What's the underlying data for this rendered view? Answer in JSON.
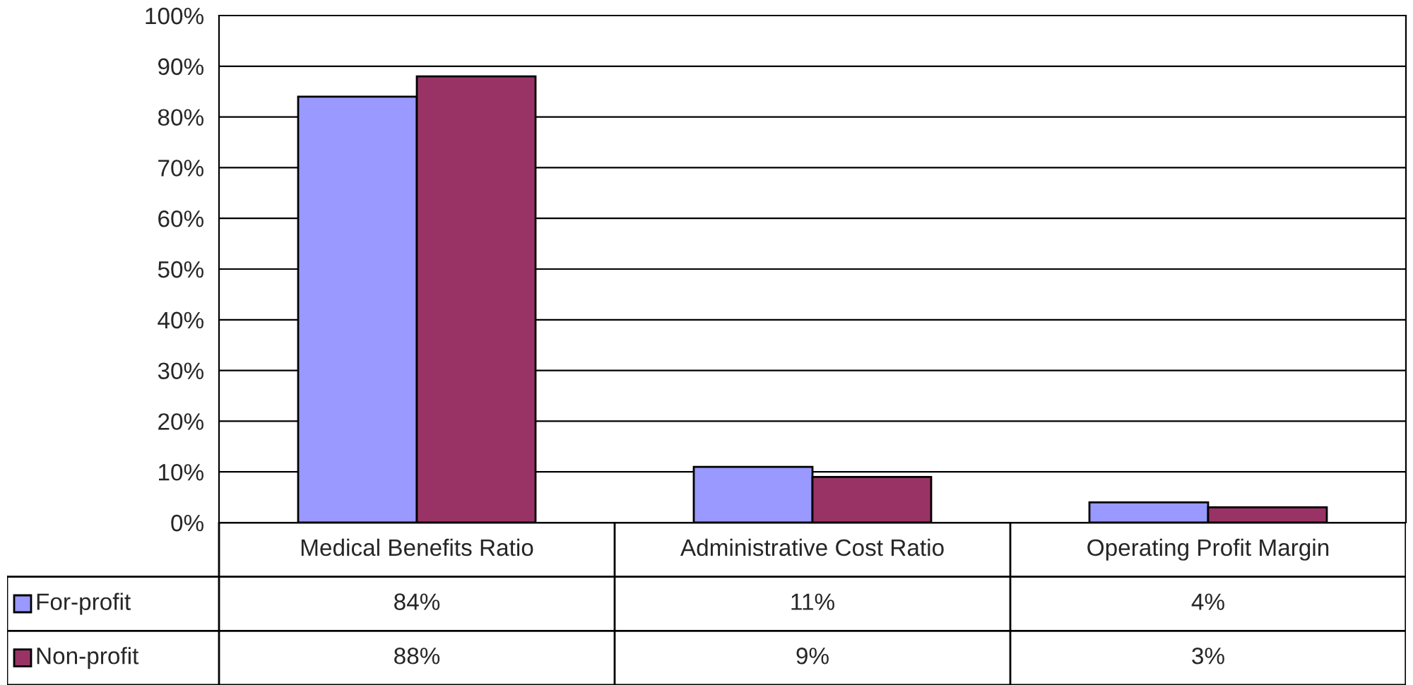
{
  "chart_data": {
    "type": "bar",
    "categories": [
      "Medical Benefits Ratio",
      "Administrative Cost Ratio",
      "Operating Profit Margin"
    ],
    "series": [
      {
        "name": "For-profit",
        "color": "#9999ff",
        "values": [
          84,
          11,
          4
        ],
        "value_labels": [
          "84%",
          "11%",
          "4%"
        ]
      },
      {
        "name": "Non-profit",
        "color": "#993366",
        "values": [
          88,
          9,
          3
        ],
        "value_labels": [
          "88%",
          "9%",
          "3%"
        ]
      }
    ],
    "ylim": [
      0,
      100
    ],
    "yticks": [
      {
        "value": 0,
        "label": "0%"
      },
      {
        "value": 10,
        "label": "10%"
      },
      {
        "value": 20,
        "label": "20%"
      },
      {
        "value": 30,
        "label": "30%"
      },
      {
        "value": 40,
        "label": "40%"
      },
      {
        "value": 50,
        "label": "50%"
      },
      {
        "value": 60,
        "label": "60%"
      },
      {
        "value": 70,
        "label": "70%"
      },
      {
        "value": 80,
        "label": "80%"
      },
      {
        "value": 90,
        "label": "90%"
      },
      {
        "value": 100,
        "label": "100%"
      }
    ],
    "grid": "y",
    "legend": "bottom left"
  }
}
